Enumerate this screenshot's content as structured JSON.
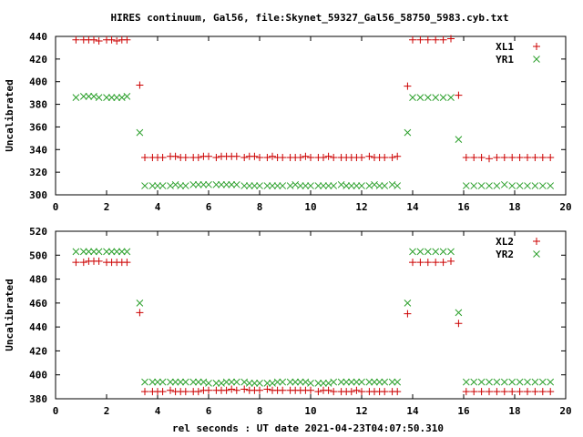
{
  "chart_data": [
    {
      "type": "scatter",
      "title": "HIRES continuum, Gal56, file:Skynet_59327_Gal56_58750_5983.cyb.txt",
      "xlabel": "",
      "ylabel": "Uncalibrated",
      "xlim": [
        0,
        20
      ],
      "ylim": [
        300,
        440
      ],
      "xticks": [
        "0",
        "2",
        "4",
        "6",
        "8",
        "10",
        "12",
        "14",
        "16",
        "18",
        "20"
      ],
      "yticks": [
        "300",
        "320",
        "340",
        "360",
        "380",
        "400",
        "420",
        "440"
      ],
      "legend_position": "top-right",
      "series": [
        {
          "name": "XL1",
          "marker": "plus",
          "color": "#cc0000",
          "x": [
            0.8,
            1.1,
            1.3,
            1.5,
            1.7,
            2.0,
            2.2,
            2.4,
            2.6,
            2.8,
            3.3,
            3.5,
            3.8,
            4.0,
            4.2,
            4.5,
            4.7,
            4.9,
            5.1,
            5.4,
            5.6,
            5.8,
            6.0,
            6.3,
            6.5,
            6.7,
            6.9,
            7.1,
            7.4,
            7.6,
            7.8,
            8.0,
            8.3,
            8.5,
            8.7,
            8.9,
            9.2,
            9.4,
            9.6,
            9.8,
            10.0,
            10.3,
            10.5,
            10.7,
            10.9,
            11.2,
            11.4,
            11.6,
            11.8,
            12.0,
            12.3,
            12.5,
            12.7,
            12.9,
            13.2,
            13.4,
            13.8,
            14.0,
            14.3,
            14.6,
            14.9,
            15.2,
            15.5,
            15.8,
            16.1,
            16.4,
            16.7,
            17.0,
            17.3,
            17.6,
            17.9,
            18.2,
            18.5,
            18.8,
            19.1,
            19.4
          ],
          "y": [
            437,
            437,
            437,
            437,
            436,
            437,
            437,
            436,
            437,
            437,
            397,
            333,
            333,
            333,
            333,
            334,
            334,
            333,
            333,
            333,
            333,
            334,
            334,
            333,
            334,
            334,
            334,
            334,
            333,
            334,
            334,
            333,
            333,
            334,
            333,
            333,
            333,
            333,
            333,
            334,
            333,
            333,
            333,
            334,
            333,
            333,
            333,
            333,
            333,
            333,
            334,
            333,
            333,
            333,
            333,
            334,
            396,
            437,
            437,
            437,
            437,
            437,
            438,
            388,
            333,
            333,
            333,
            332,
            333,
            333,
            333,
            333,
            333,
            333,
            333,
            333
          ]
        },
        {
          "name": "YR1",
          "marker": "cross",
          "color": "#2ca02c",
          "x": [
            0.8,
            1.1,
            1.3,
            1.5,
            1.7,
            2.0,
            2.2,
            2.4,
            2.6,
            2.8,
            3.3,
            3.5,
            3.8,
            4.0,
            4.2,
            4.5,
            4.7,
            4.9,
            5.1,
            5.4,
            5.6,
            5.8,
            6.0,
            6.3,
            6.5,
            6.7,
            6.9,
            7.1,
            7.4,
            7.6,
            7.8,
            8.0,
            8.3,
            8.5,
            8.7,
            8.9,
            9.2,
            9.4,
            9.6,
            9.8,
            10.0,
            10.3,
            10.5,
            10.7,
            10.9,
            11.2,
            11.4,
            11.6,
            11.8,
            12.0,
            12.3,
            12.5,
            12.7,
            12.9,
            13.2,
            13.4,
            13.8,
            14.0,
            14.3,
            14.6,
            14.9,
            15.2,
            15.5,
            15.8,
            16.1,
            16.4,
            16.7,
            17.0,
            17.3,
            17.6,
            17.9,
            18.2,
            18.5,
            18.8,
            19.1,
            19.4
          ],
          "y": [
            386,
            387,
            387,
            387,
            386,
            386,
            386,
            386,
            386,
            387,
            355,
            308,
            308,
            308,
            308,
            308,
            309,
            308,
            308,
            309,
            309,
            309,
            309,
            309,
            309,
            309,
            309,
            309,
            308,
            308,
            308,
            308,
            308,
            308,
            308,
            308,
            308,
            309,
            308,
            308,
            308,
            308,
            308,
            308,
            308,
            309,
            308,
            308,
            308,
            308,
            308,
            309,
            308,
            308,
            309,
            308,
            355,
            386,
            386,
            386,
            386,
            386,
            386,
            349,
            308,
            308,
            308,
            308,
            308,
            309,
            308,
            308,
            308,
            308,
            308,
            308
          ]
        }
      ]
    },
    {
      "type": "scatter",
      "title": "",
      "xlabel": "rel seconds : UT date 2021-04-23T04:07:50.310",
      "ylabel": "Uncalibrated",
      "xlim": [
        0,
        20
      ],
      "ylim": [
        380,
        520
      ],
      "xticks": [
        "0",
        "2",
        "4",
        "6",
        "8",
        "10",
        "12",
        "14",
        "16",
        "18",
        "20"
      ],
      "yticks": [
        "380",
        "400",
        "420",
        "440",
        "460",
        "480",
        "500",
        "520"
      ],
      "legend_position": "top-right",
      "series": [
        {
          "name": "XL2",
          "marker": "plus",
          "color": "#cc0000",
          "x": [
            0.8,
            1.1,
            1.3,
            1.5,
            1.7,
            2.0,
            2.2,
            2.4,
            2.6,
            2.8,
            3.3,
            3.5,
            3.8,
            4.0,
            4.2,
            4.5,
            4.7,
            4.9,
            5.1,
            5.4,
            5.6,
            5.8,
            6.0,
            6.3,
            6.5,
            6.7,
            6.9,
            7.1,
            7.4,
            7.6,
            7.8,
            8.0,
            8.3,
            8.5,
            8.7,
            8.9,
            9.2,
            9.4,
            9.6,
            9.8,
            10.0,
            10.3,
            10.5,
            10.7,
            10.9,
            11.2,
            11.4,
            11.6,
            11.8,
            12.0,
            12.3,
            12.5,
            12.7,
            12.9,
            13.2,
            13.4,
            13.8,
            14.0,
            14.3,
            14.6,
            14.9,
            15.2,
            15.5,
            15.8,
            16.1,
            16.4,
            16.7,
            17.0,
            17.3,
            17.6,
            17.9,
            18.2,
            18.5,
            18.8,
            19.1,
            19.4
          ],
          "y": [
            494,
            494,
            495,
            495,
            495,
            494,
            494,
            494,
            494,
            494,
            452,
            386,
            386,
            386,
            386,
            387,
            386,
            386,
            386,
            386,
            386,
            387,
            387,
            387,
            387,
            387,
            388,
            387,
            388,
            387,
            387,
            387,
            388,
            387,
            387,
            387,
            387,
            387,
            387,
            387,
            387,
            386,
            387,
            387,
            386,
            386,
            386,
            386,
            387,
            386,
            386,
            386,
            386,
            386,
            386,
            386,
            451,
            494,
            494,
            494,
            494,
            494,
            495,
            443,
            386,
            386,
            386,
            386,
            386,
            386,
            386,
            386,
            386,
            386,
            386,
            386
          ]
        },
        {
          "name": "YR2",
          "marker": "cross",
          "color": "#2ca02c",
          "x": [
            0.8,
            1.1,
            1.3,
            1.5,
            1.7,
            2.0,
            2.2,
            2.4,
            2.6,
            2.8,
            3.3,
            3.5,
            3.8,
            4.0,
            4.2,
            4.5,
            4.7,
            4.9,
            5.1,
            5.4,
            5.6,
            5.8,
            6.0,
            6.3,
            6.5,
            6.7,
            6.9,
            7.1,
            7.4,
            7.6,
            7.8,
            8.0,
            8.3,
            8.5,
            8.7,
            8.9,
            9.2,
            9.4,
            9.6,
            9.8,
            10.0,
            10.3,
            10.5,
            10.7,
            10.9,
            11.2,
            11.4,
            11.6,
            11.8,
            12.0,
            12.3,
            12.5,
            12.7,
            12.9,
            13.2,
            13.4,
            13.8,
            14.0,
            14.3,
            14.6,
            14.9,
            15.2,
            15.5,
            15.8,
            16.1,
            16.4,
            16.7,
            17.0,
            17.3,
            17.6,
            17.9,
            18.2,
            18.5,
            18.8,
            19.1,
            19.4
          ],
          "y": [
            503,
            503,
            503,
            503,
            503,
            503,
            503,
            503,
            503,
            503,
            460,
            394,
            394,
            394,
            394,
            394,
            394,
            394,
            394,
            394,
            394,
            394,
            393,
            393,
            393,
            394,
            394,
            394,
            394,
            393,
            393,
            393,
            393,
            393,
            394,
            394,
            394,
            394,
            394,
            394,
            393,
            393,
            393,
            393,
            394,
            394,
            394,
            394,
            394,
            394,
            394,
            394,
            394,
            394,
            394,
            394,
            460,
            503,
            503,
            503,
            503,
            503,
            503,
            452,
            394,
            394,
            394,
            394,
            394,
            394,
            394,
            394,
            394,
            394,
            394,
            394
          ]
        }
      ]
    }
  ]
}
